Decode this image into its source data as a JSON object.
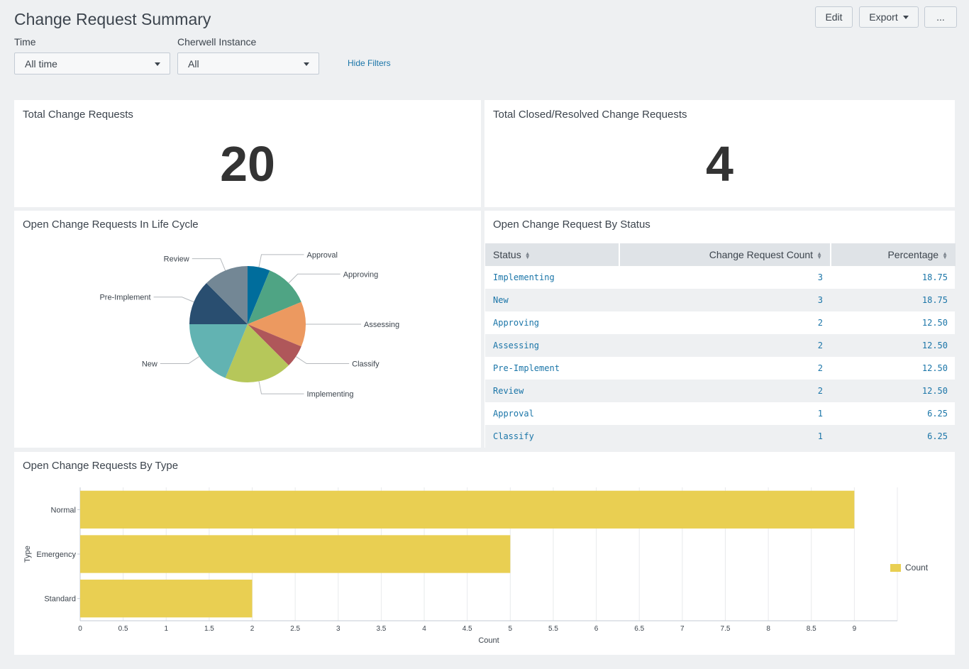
{
  "header": {
    "title": "Change Request Summary",
    "edit_label": "Edit",
    "export_label": "Export",
    "more_label": "..."
  },
  "filters": {
    "time_label": "Time",
    "time_value": "All time",
    "instance_label": "Cherwell Instance",
    "instance_value": "All",
    "hide_label": "Hide Filters"
  },
  "panels": {
    "total": {
      "title": "Total Change Requests",
      "value": "20"
    },
    "closed": {
      "title": "Total Closed/Resolved Change Requests",
      "value": "4"
    },
    "lifecycle": {
      "title": "Open Change Requests In Life Cycle"
    },
    "status": {
      "title": "Open Change Request By Status"
    },
    "type": {
      "title": "Open Change Requests By Type"
    }
  },
  "status_table": {
    "headers": [
      "Status",
      "Change Request Count",
      "Percentage"
    ],
    "rows": [
      {
        "status": "Implementing",
        "count": "3",
        "pct": "18.75"
      },
      {
        "status": "New",
        "count": "3",
        "pct": "18.75"
      },
      {
        "status": "Approving",
        "count": "2",
        "pct": "12.50"
      },
      {
        "status": "Assessing",
        "count": "2",
        "pct": "12.50"
      },
      {
        "status": "Pre-Implement",
        "count": "2",
        "pct": "12.50"
      },
      {
        "status": "Review",
        "count": "2",
        "pct": "12.50"
      },
      {
        "status": "Approval",
        "count": "1",
        "pct": "6.25"
      },
      {
        "status": "Classify",
        "count": "1",
        "pct": "6.25"
      }
    ]
  },
  "colors": {
    "link": "#1a75a8",
    "bar": "#e9cf52"
  },
  "chart_data": [
    {
      "type": "pie",
      "categories": [
        "Approval",
        "Approving",
        "Assessing",
        "Classify",
        "Implementing",
        "New",
        "Pre-Implement",
        "Review"
      ],
      "values": [
        1,
        2,
        2,
        1,
        3,
        3,
        2,
        2
      ],
      "colors": [
        "#006d9c",
        "#4fa484",
        "#ec9960",
        "#af575a",
        "#b6c75a",
        "#62b3b2",
        "#294e70",
        "#738795"
      ]
    },
    {
      "type": "bar",
      "orientation": "horizontal",
      "categories": [
        "Normal",
        "Emergency",
        "Standard"
      ],
      "series": [
        {
          "name": "Count",
          "values": [
            9,
            5,
            2
          ]
        }
      ],
      "xlabel": "Count",
      "ylabel": "Type",
      "xlim": [
        0,
        9.5
      ],
      "ticks": [
        "0",
        "0.5",
        "1",
        "1.5",
        "2",
        "2.5",
        "3",
        "3.5",
        "4",
        "4.5",
        "5",
        "5.5",
        "6",
        "6.5",
        "7",
        "7.5",
        "8",
        "8.5",
        "9"
      ],
      "grid": true,
      "legend": "right"
    }
  ]
}
